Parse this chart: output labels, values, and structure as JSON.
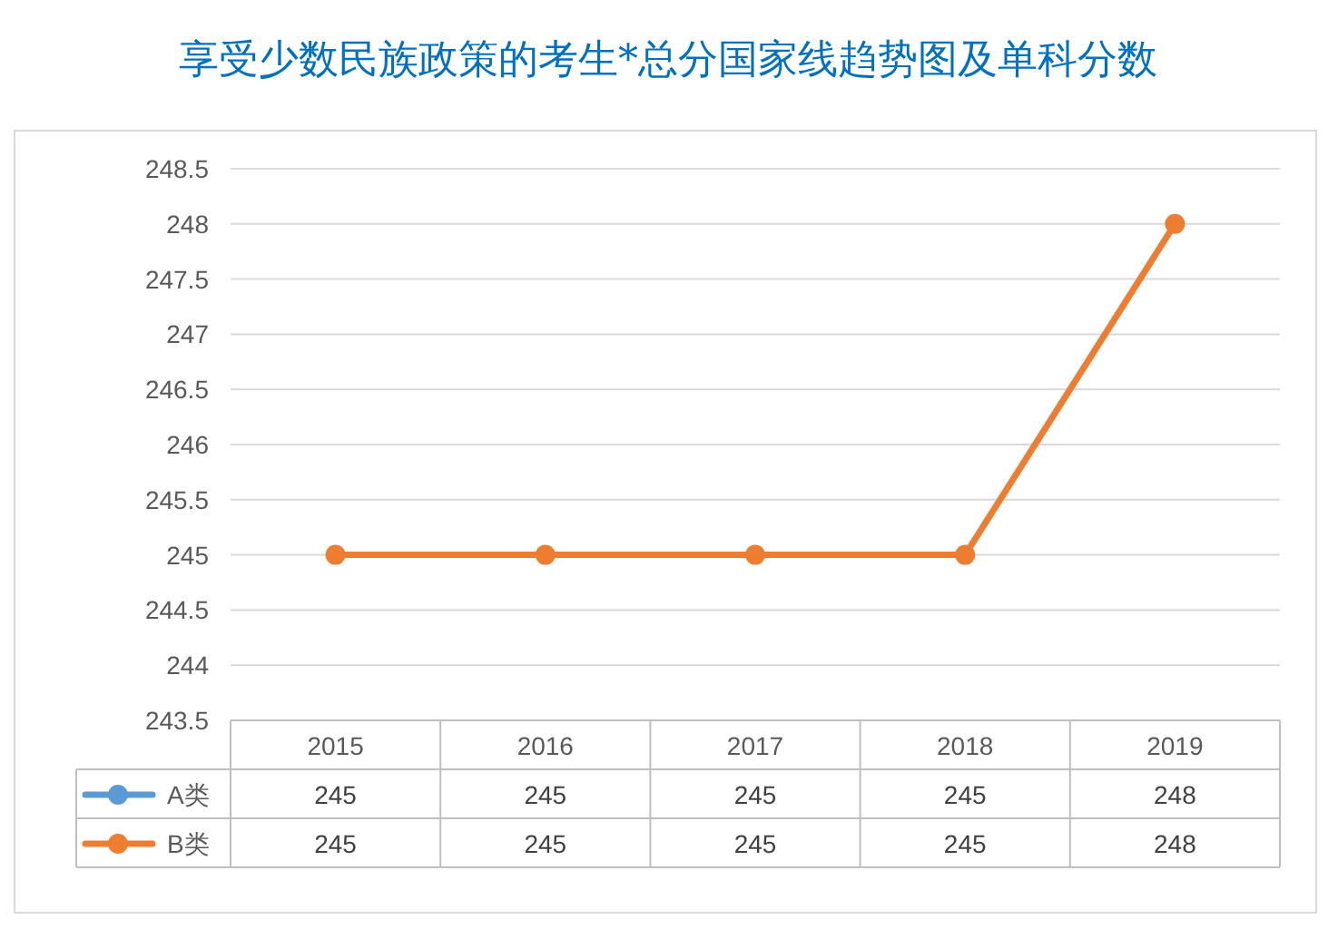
{
  "chart_data": {
    "type": "line",
    "title": "享受少数民族政策的考生*总分国家线趋势图及单科分数",
    "categories": [
      "2015",
      "2016",
      "2017",
      "2018",
      "2019"
    ],
    "series": [
      {
        "name": "A类",
        "color": "#5b9bd5",
        "values": [
          null,
          null,
          null,
          null,
          null
        ],
        "value_labels": [
          "245",
          "245",
          "245",
          "245",
          "248"
        ]
      },
      {
        "name": "B类",
        "color": "#ed7d31",
        "values": [
          245,
          245,
          245,
          245,
          248
        ],
        "value_labels": [
          "245",
          "245",
          "245",
          "245",
          "248"
        ]
      }
    ],
    "ylim": [
      243.5,
      248.5
    ],
    "yticks": [
      243.5,
      244,
      244.5,
      245,
      245.5,
      246,
      246.5,
      247,
      247.5,
      248,
      248.5
    ],
    "grid": "y",
    "marker": "circle",
    "line_style": "solid",
    "legend": "bottom"
  }
}
